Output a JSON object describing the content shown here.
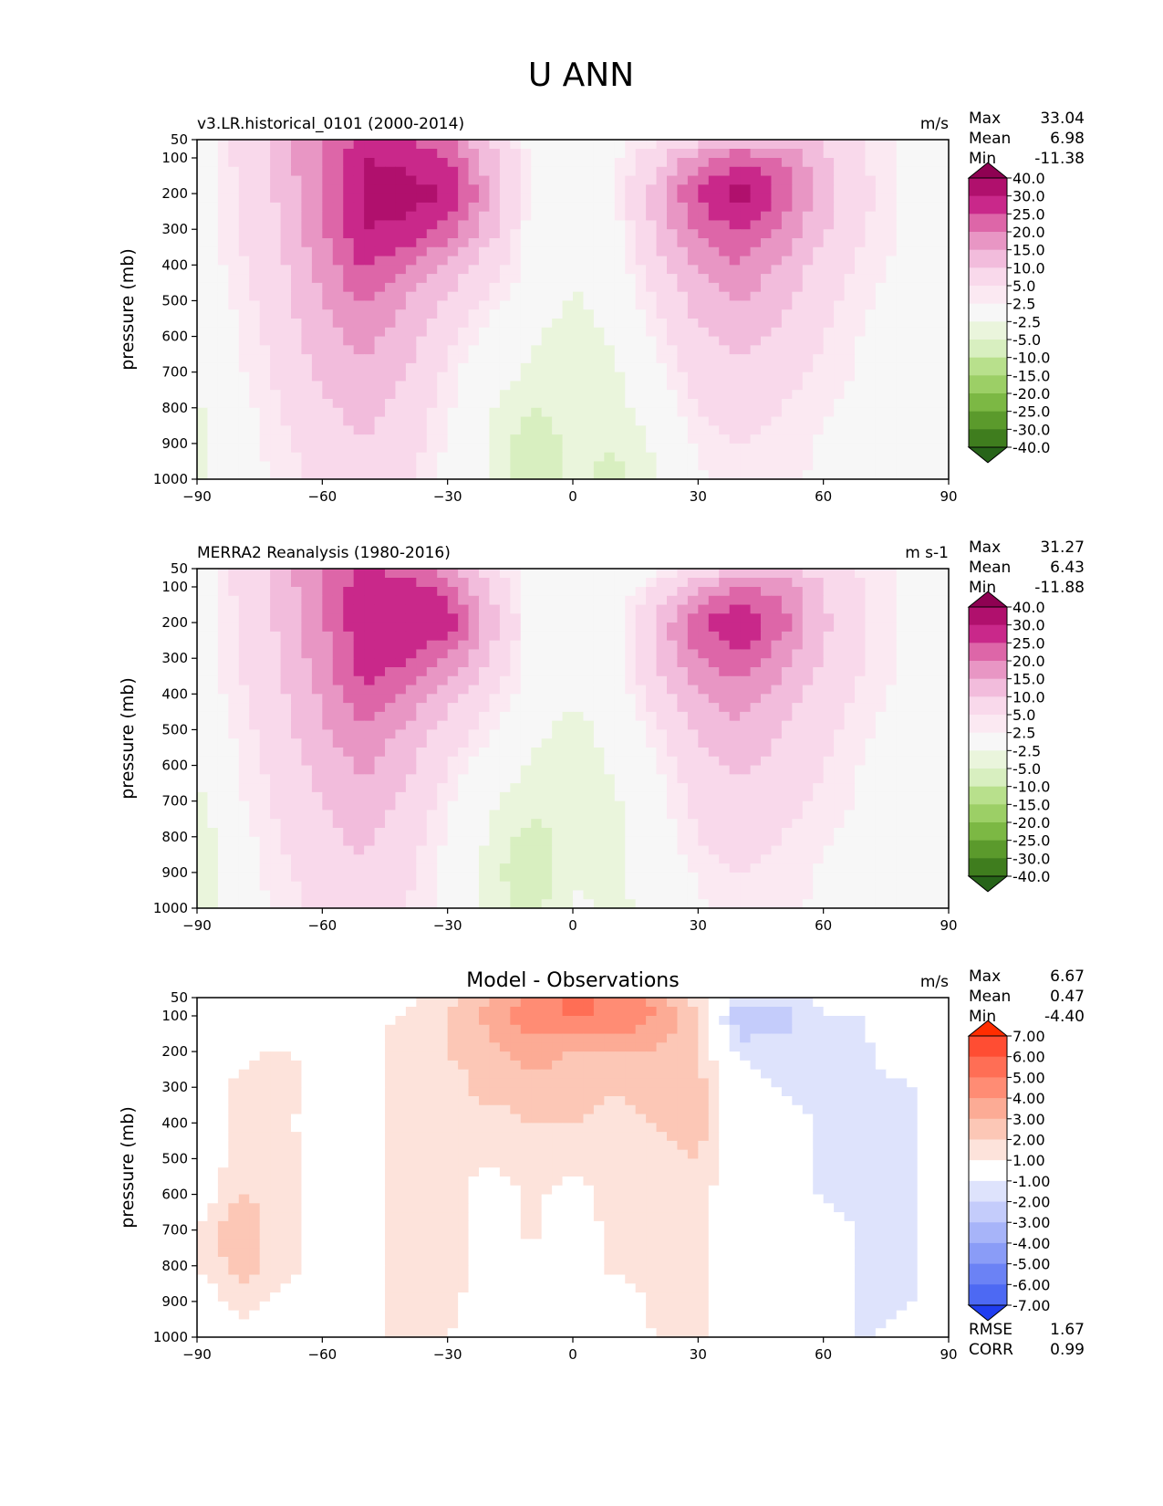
{
  "figure": {
    "title": "U ANN"
  },
  "chart_data": [
    {
      "type": "heatmap",
      "id": "test",
      "title": "v3.LR.historical_0101 (2000-2014)",
      "units": "m/s",
      "ylabel": "pressure (mb)",
      "xlim": [
        -90,
        90
      ],
      "ylim": [
        1000,
        50
      ],
      "xticks": [
        "−90",
        "−60",
        "−30",
        "0",
        "30",
        "60",
        "90"
      ],
      "yticks": [
        "50",
        "100",
        "200",
        "300",
        "400",
        "500",
        "600",
        "700",
        "800",
        "900",
        "1000"
      ],
      "stats": {
        "labels": [
          "Max",
          "Mean",
          "Min"
        ],
        "values": [
          "33.04",
          "6.98",
          "-11.38"
        ]
      },
      "colorbar": {
        "labels": [
          "40.0",
          "30.0",
          "25.0",
          "20.0",
          "15.0",
          "10.0",
          "5.0",
          "2.5",
          "-2.5",
          "-5.0",
          "-10.0",
          "-15.0",
          "-20.0",
          "-25.0",
          "-30.0",
          "-40.0"
        ],
        "colors": [
          "#8e0152",
          "#b0106d",
          "#c9288a",
          "#dd66a8",
          "#e896c4",
          "#f2bcdc",
          "#f9d9eb",
          "#fbe9f2",
          "#f7f7f7",
          "#eaf5dc",
          "#d8efc0",
          "#b8e08c",
          "#9ccf66",
          "#7cb844",
          "#5b9a2c",
          "#3f7d1e",
          "#276419"
        ]
      },
      "field": {
        "lat": [
          -90,
          -80,
          -70,
          -60,
          -50,
          -40,
          -30,
          -20,
          -10,
          0,
          10,
          20,
          30,
          40,
          50,
          60,
          70,
          80,
          90
        ],
        "lev": [
          50,
          100,
          200,
          300,
          400,
          500,
          600,
          700,
          800,
          900,
          1000
        ],
        "values": [
          [
            0,
            6,
            12,
            20,
            27,
            25,
            20,
            10,
            1,
            2,
            1,
            4,
            8,
            12,
            12,
            9,
            5,
            2,
            0
          ],
          [
            0,
            6,
            12,
            21,
            30,
            29,
            26,
            12,
            2,
            1,
            2,
            8,
            18,
            24,
            20,
            11,
            5,
            2,
            0
          ],
          [
            0,
            5,
            11,
            20,
            31,
            32,
            30,
            15,
            1,
            0,
            2,
            13,
            26,
            33,
            24,
            12,
            6,
            2,
            0
          ],
          [
            0,
            5,
            10,
            19,
            30,
            29,
            23,
            12,
            1,
            -1,
            1,
            11,
            21,
            26,
            19,
            11,
            5,
            2,
            0
          ],
          [
            0,
            4,
            9,
            17,
            26,
            21,
            14,
            7,
            1,
            -2,
            0,
            8,
            16,
            20,
            14,
            8,
            4,
            1,
            0
          ],
          [
            0,
            3,
            8,
            15,
            21,
            15,
            9,
            4,
            0,
            -3,
            -1,
            5,
            12,
            15,
            11,
            6,
            3,
            1,
            0
          ],
          [
            -1,
            2,
            7,
            13,
            17,
            12,
            6,
            1,
            -2,
            -4,
            -2,
            3,
            9,
            12,
            9,
            5,
            2,
            1,
            0
          ],
          [
            -3,
            2,
            6,
            11,
            14,
            10,
            4,
            -1,
            -3,
            -4,
            -3,
            1,
            7,
            9,
            7,
            4,
            2,
            0,
            0
          ],
          [
            -3,
            1,
            5,
            9,
            12,
            8,
            3,
            -2,
            -5,
            -4,
            -4,
            0,
            5,
            7,
            5,
            3,
            1,
            0,
            0
          ],
          [
            -4,
            1,
            4,
            8,
            10,
            7,
            2,
            -3,
            -7,
            -4,
            -5,
            -2,
            3,
            5,
            4,
            2,
            1,
            0,
            0
          ],
          [
            -4,
            0,
            3,
            6,
            8,
            6,
            1,
            -3,
            -7,
            -4,
            -6,
            -3,
            2,
            4,
            3,
            2,
            1,
            0,
            0
          ]
        ]
      }
    },
    {
      "type": "heatmap",
      "id": "reference",
      "title": "MERRA2 Reanalysis (1980-2016)",
      "units": "m s-1",
      "ylabel": "pressure (mb)",
      "xlim": [
        -90,
        90
      ],
      "ylim": [
        1000,
        50
      ],
      "xticks": [
        "−90",
        "−60",
        "−30",
        "0",
        "30",
        "60",
        "90"
      ],
      "yticks": [
        "50",
        "100",
        "200",
        "300",
        "400",
        "500",
        "600",
        "700",
        "800",
        "900",
        "1000"
      ],
      "stats": {
        "labels": [
          "Max",
          "Mean",
          "Min"
        ],
        "values": [
          "31.27",
          "6.43",
          "-11.88"
        ]
      },
      "colorbar": {
        "labels": [
          "40.0",
          "30.0",
          "25.0",
          "20.0",
          "15.0",
          "10.0",
          "5.0",
          "2.5",
          "-2.5",
          "-5.0",
          "-10.0",
          "-15.0",
          "-20.0",
          "-25.0",
          "-30.0",
          "-40.0"
        ],
        "colors": [
          "#8e0152",
          "#b0106d",
          "#c9288a",
          "#dd66a8",
          "#e896c4",
          "#f2bcdc",
          "#f9d9eb",
          "#fbe9f2",
          "#f7f7f7",
          "#eaf5dc",
          "#d8efc0",
          "#b8e08c",
          "#9ccf66",
          "#7cb844",
          "#5b9a2c",
          "#3f7d1e",
          "#276419"
        ]
      },
      "field": {
        "lat": [
          -90,
          -80,
          -70,
          -60,
          -50,
          -40,
          -30,
          -20,
          -10,
          0,
          10,
          20,
          30,
          40,
          50,
          60,
          70,
          80,
          90
        ],
        "lev": [
          50,
          100,
          200,
          300,
          400,
          500,
          600,
          700,
          800,
          900,
          1000
        ],
        "values": [
          [
            0,
            6,
            12,
            20,
            26,
            23,
            17,
            7,
            0,
            -1,
            -2,
            1,
            6,
            10,
            10,
            8,
            4,
            2,
            0
          ],
          [
            0,
            6,
            12,
            20,
            28,
            27,
            23,
            9,
            1,
            -1,
            0,
            5,
            15,
            21,
            18,
            10,
            5,
            2,
            0
          ],
          [
            0,
            5,
            11,
            19,
            29,
            30,
            28,
            13,
            1,
            -1,
            1,
            11,
            24,
            31,
            22,
            11,
            5,
            2,
            0
          ],
          [
            0,
            5,
            10,
            18,
            28,
            26,
            20,
            10,
            1,
            -1,
            1,
            10,
            20,
            24,
            17,
            10,
            5,
            2,
            0
          ],
          [
            0,
            4,
            9,
            16,
            24,
            19,
            12,
            6,
            0,
            -2,
            0,
            7,
            15,
            18,
            13,
            7,
            4,
            1,
            0
          ],
          [
            0,
            3,
            8,
            14,
            20,
            14,
            8,
            3,
            -1,
            -4,
            -1,
            4,
            11,
            14,
            10,
            6,
            3,
            1,
            0
          ],
          [
            -1,
            2,
            7,
            12,
            16,
            11,
            5,
            0,
            -3,
            -5,
            -2,
            2,
            8,
            11,
            8,
            5,
            2,
            1,
            0
          ],
          [
            -4,
            2,
            6,
            10,
            13,
            9,
            3,
            -2,
            -4,
            -4,
            -3,
            1,
            6,
            9,
            7,
            4,
            2,
            0,
            0
          ],
          [
            -5,
            1,
            5,
            9,
            11,
            7,
            2,
            -3,
            -6,
            -4,
            -3,
            0,
            5,
            7,
            5,
            3,
            1,
            0,
            0
          ],
          [
            -5,
            1,
            4,
            7,
            9,
            6,
            1,
            -4,
            -8,
            -3,
            -3,
            -1,
            3,
            5,
            4,
            2,
            1,
            0,
            0
          ],
          [
            -4,
            0,
            3,
            6,
            7,
            5,
            1,
            -3,
            -6,
            -2,
            -3,
            -2,
            2,
            4,
            3,
            2,
            1,
            0,
            0
          ]
        ]
      }
    },
    {
      "type": "heatmap",
      "id": "diff",
      "title": "Model - Observations",
      "units": "m/s",
      "ylabel": "pressure (mb)",
      "xlim": [
        -90,
        90
      ],
      "ylim": [
        1000,
        50
      ],
      "xticks": [
        "−90",
        "−60",
        "−30",
        "0",
        "30",
        "60",
        "90"
      ],
      "yticks": [
        "50",
        "100",
        "200",
        "300",
        "400",
        "500",
        "600",
        "700",
        "800",
        "900",
        "1000"
      ],
      "stats": {
        "labels": [
          "Max",
          "Mean",
          "Min"
        ],
        "values": [
          "6.67",
          "0.47",
          "-4.40"
        ]
      },
      "extra_stats": {
        "labels": [
          "RMSE",
          "CORR"
        ],
        "values": [
          "1.67",
          "0.99"
        ]
      },
      "colorbar": {
        "labels": [
          "7.00",
          "6.00",
          "5.00",
          "4.00",
          "3.00",
          "2.00",
          "1.00",
          "-1.00",
          "-2.00",
          "-3.00",
          "-4.00",
          "-5.00",
          "-6.00",
          "-7.00"
        ],
        "colors": [
          "#ff2d00",
          "#ff4d33",
          "#ff6e55",
          "#ff8c74",
          "#fcab95",
          "#fcc7b6",
          "#fde3db",
          "#ffffff",
          "#dee3fc",
          "#c4ccfb",
          "#a7b4f9",
          "#8a9cf7",
          "#6b82f5",
          "#4d69f3",
          "#1f3df0"
        ]
      },
      "field": {
        "lat": [
          -90,
          -80,
          -70,
          -60,
          -50,
          -40,
          -30,
          -20,
          -10,
          0,
          10,
          20,
          30,
          40,
          50,
          60,
          70,
          80,
          90
        ],
        "lev": [
          50,
          100,
          200,
          300,
          400,
          500,
          600,
          700,
          800,
          900,
          1000
        ],
        "values": [
          [
            0,
            0,
            0,
            0,
            0.5,
            0.8,
            1.5,
            3.0,
            4.0,
            5.5,
            4.5,
            3.5,
            1.5,
            -1.5,
            -1.5,
            -0.5,
            0,
            0,
            0
          ],
          [
            0,
            0,
            0,
            0,
            0.8,
            1.0,
            2.0,
            3.5,
            4.5,
            5.0,
            5.0,
            4.0,
            2.0,
            -3.0,
            -2.5,
            -1.2,
            -1.0,
            0,
            0
          ],
          [
            0,
            0.5,
            1.2,
            0.5,
            0.5,
            1.5,
            2.0,
            2.5,
            3.5,
            3.0,
            3.0,
            3.0,
            2.0,
            -1.5,
            -1.5,
            -1.2,
            -1.2,
            0,
            0
          ],
          [
            0,
            1.5,
            1.5,
            0.5,
            0.5,
            1.5,
            1.5,
            2.5,
            2.5,
            2.5,
            2.0,
            2.5,
            2.5,
            0,
            -1.2,
            -1.2,
            -1.2,
            -1.2,
            0
          ],
          [
            0,
            1.5,
            1.2,
            0.5,
            0.5,
            1.5,
            1.2,
            1.5,
            2.0,
            2.0,
            1.5,
            2.0,
            2.5,
            0,
            -0.5,
            -1.2,
            -1.2,
            -1.2,
            0
          ],
          [
            0,
            1.5,
            1.5,
            0.5,
            0.5,
            1.5,
            1.5,
            1.0,
            1.5,
            1.5,
            1.5,
            1.5,
            2.0,
            0,
            0,
            -1.2,
            -1.2,
            -1.2,
            0
          ],
          [
            0,
            2.0,
            1.8,
            0.5,
            0.5,
            1.5,
            1.5,
            0.5,
            1.2,
            0.5,
            1.5,
            1.5,
            1.5,
            0,
            0,
            -1.2,
            -1.2,
            -1.2,
            0
          ],
          [
            1.0,
            2.8,
            1.5,
            0.5,
            0.5,
            1.5,
            1.5,
            0.5,
            1.2,
            0.5,
            1.2,
            1.5,
            1.5,
            0,
            0,
            -0.5,
            -1.2,
            -1.2,
            0
          ],
          [
            1.0,
            2.5,
            1.5,
            0.5,
            0.5,
            1.5,
            1.5,
            0.5,
            0.5,
            0.5,
            1.2,
            1.5,
            1.5,
            0,
            0,
            -0.5,
            -1.2,
            -1.2,
            0
          ],
          [
            0,
            1.5,
            0.5,
            0,
            0.5,
            1.5,
            1.2,
            0.5,
            0.5,
            0.5,
            0.5,
            1.2,
            1.5,
            0,
            0,
            -0.5,
            -1.2,
            -1.2,
            0
          ],
          [
            0,
            0.5,
            0,
            0,
            0.5,
            1.5,
            1.0,
            0.5,
            0.5,
            -1.2,
            0.5,
            1.0,
            1.5,
            0,
            0,
            0,
            -1.2,
            -0.5,
            0
          ]
        ]
      }
    }
  ]
}
